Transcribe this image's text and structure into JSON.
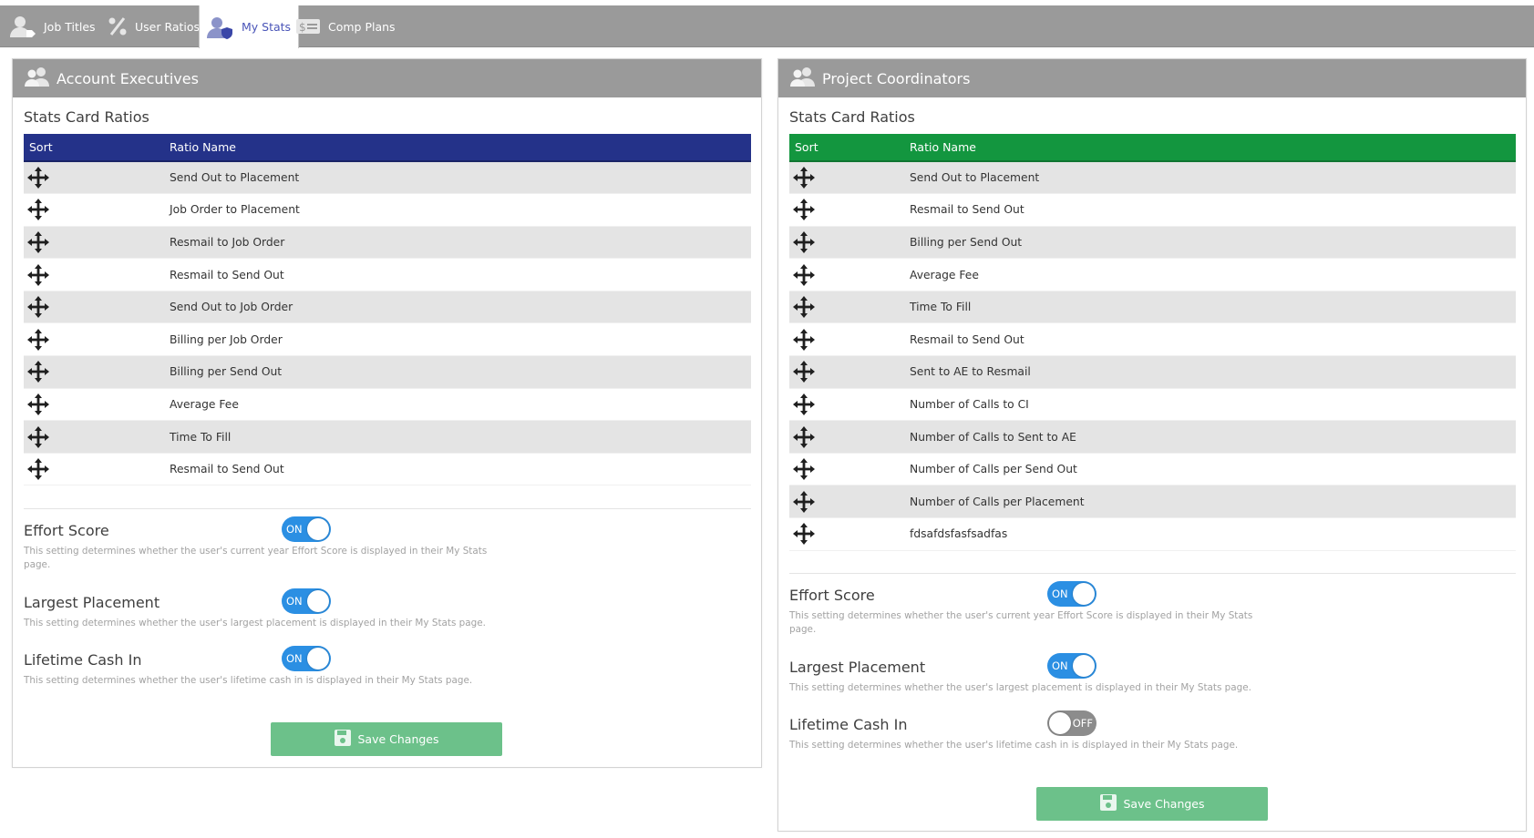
{
  "tabs": [
    {
      "label": "Job Titles",
      "icon": "user-tag-icon"
    },
    {
      "label": "User Ratios",
      "icon": "percent-icon"
    },
    {
      "label": "My Stats",
      "icon": "user-shield-icon"
    },
    {
      "label": "Comp Plans",
      "icon": "money-bill-icon"
    }
  ],
  "colors": {
    "ae_header": "#243289",
    "pc_header": "#13963f",
    "toggle_on": "#2b8fe3",
    "toggle_off": "#8c8c8c",
    "save_button": "#6cc18a"
  },
  "panels": [
    {
      "title": "Account Executives",
      "section_title": "Stats Card Ratios",
      "columns": [
        "Sort",
        "Ratio Name"
      ],
      "ratios": [
        "Send Out to Placement",
        "Job Order to Placement",
        "Resmail to Job Order",
        "Resmail to Send Out",
        "Send Out to Job Order",
        "Billing per Job Order",
        "Billing per Send Out",
        "Average Fee",
        "Time To Fill",
        "Resmail to Send Out"
      ],
      "settings": [
        {
          "label": "Effort Score",
          "state": "ON",
          "desc": "This setting determines whether the user's current year Effort Score is displayed in their My Stats page."
        },
        {
          "label": "Largest Placement",
          "state": "ON",
          "desc": "This setting determines whether the user's largest placement is displayed in their My Stats page."
        },
        {
          "label": "Lifetime Cash In",
          "state": "ON",
          "desc": "This setting determines whether the user's lifetime cash in is displayed in their My Stats page."
        }
      ],
      "save_label": "Save Changes"
    },
    {
      "title": "Project Coordinators",
      "section_title": "Stats Card Ratios",
      "columns": [
        "Sort",
        "Ratio Name"
      ],
      "ratios": [
        "Send Out to Placement",
        "Resmail to Send Out",
        "Billing per Send Out",
        "Average Fee",
        "Time To Fill",
        "Resmail to Send Out",
        "Sent to AE to Resmail",
        "Number of Calls to CI",
        "Number of Calls to Sent to AE",
        "Number of Calls per Send Out",
        "Number of Calls per Placement",
        "fdsafdsfasfsadfas"
      ],
      "settings": [
        {
          "label": "Effort Score",
          "state": "ON",
          "desc": "This setting determines whether the user's current year Effort Score is displayed in their My Stats page."
        },
        {
          "label": "Largest Placement",
          "state": "ON",
          "desc": "This setting determines whether the user's largest placement is displayed in their My Stats page."
        },
        {
          "label": "Lifetime Cash In",
          "state": "OFF",
          "desc": "This setting determines whether the user's lifetime cash in is displayed in their My Stats page."
        }
      ],
      "save_label": "Save Changes"
    }
  ]
}
